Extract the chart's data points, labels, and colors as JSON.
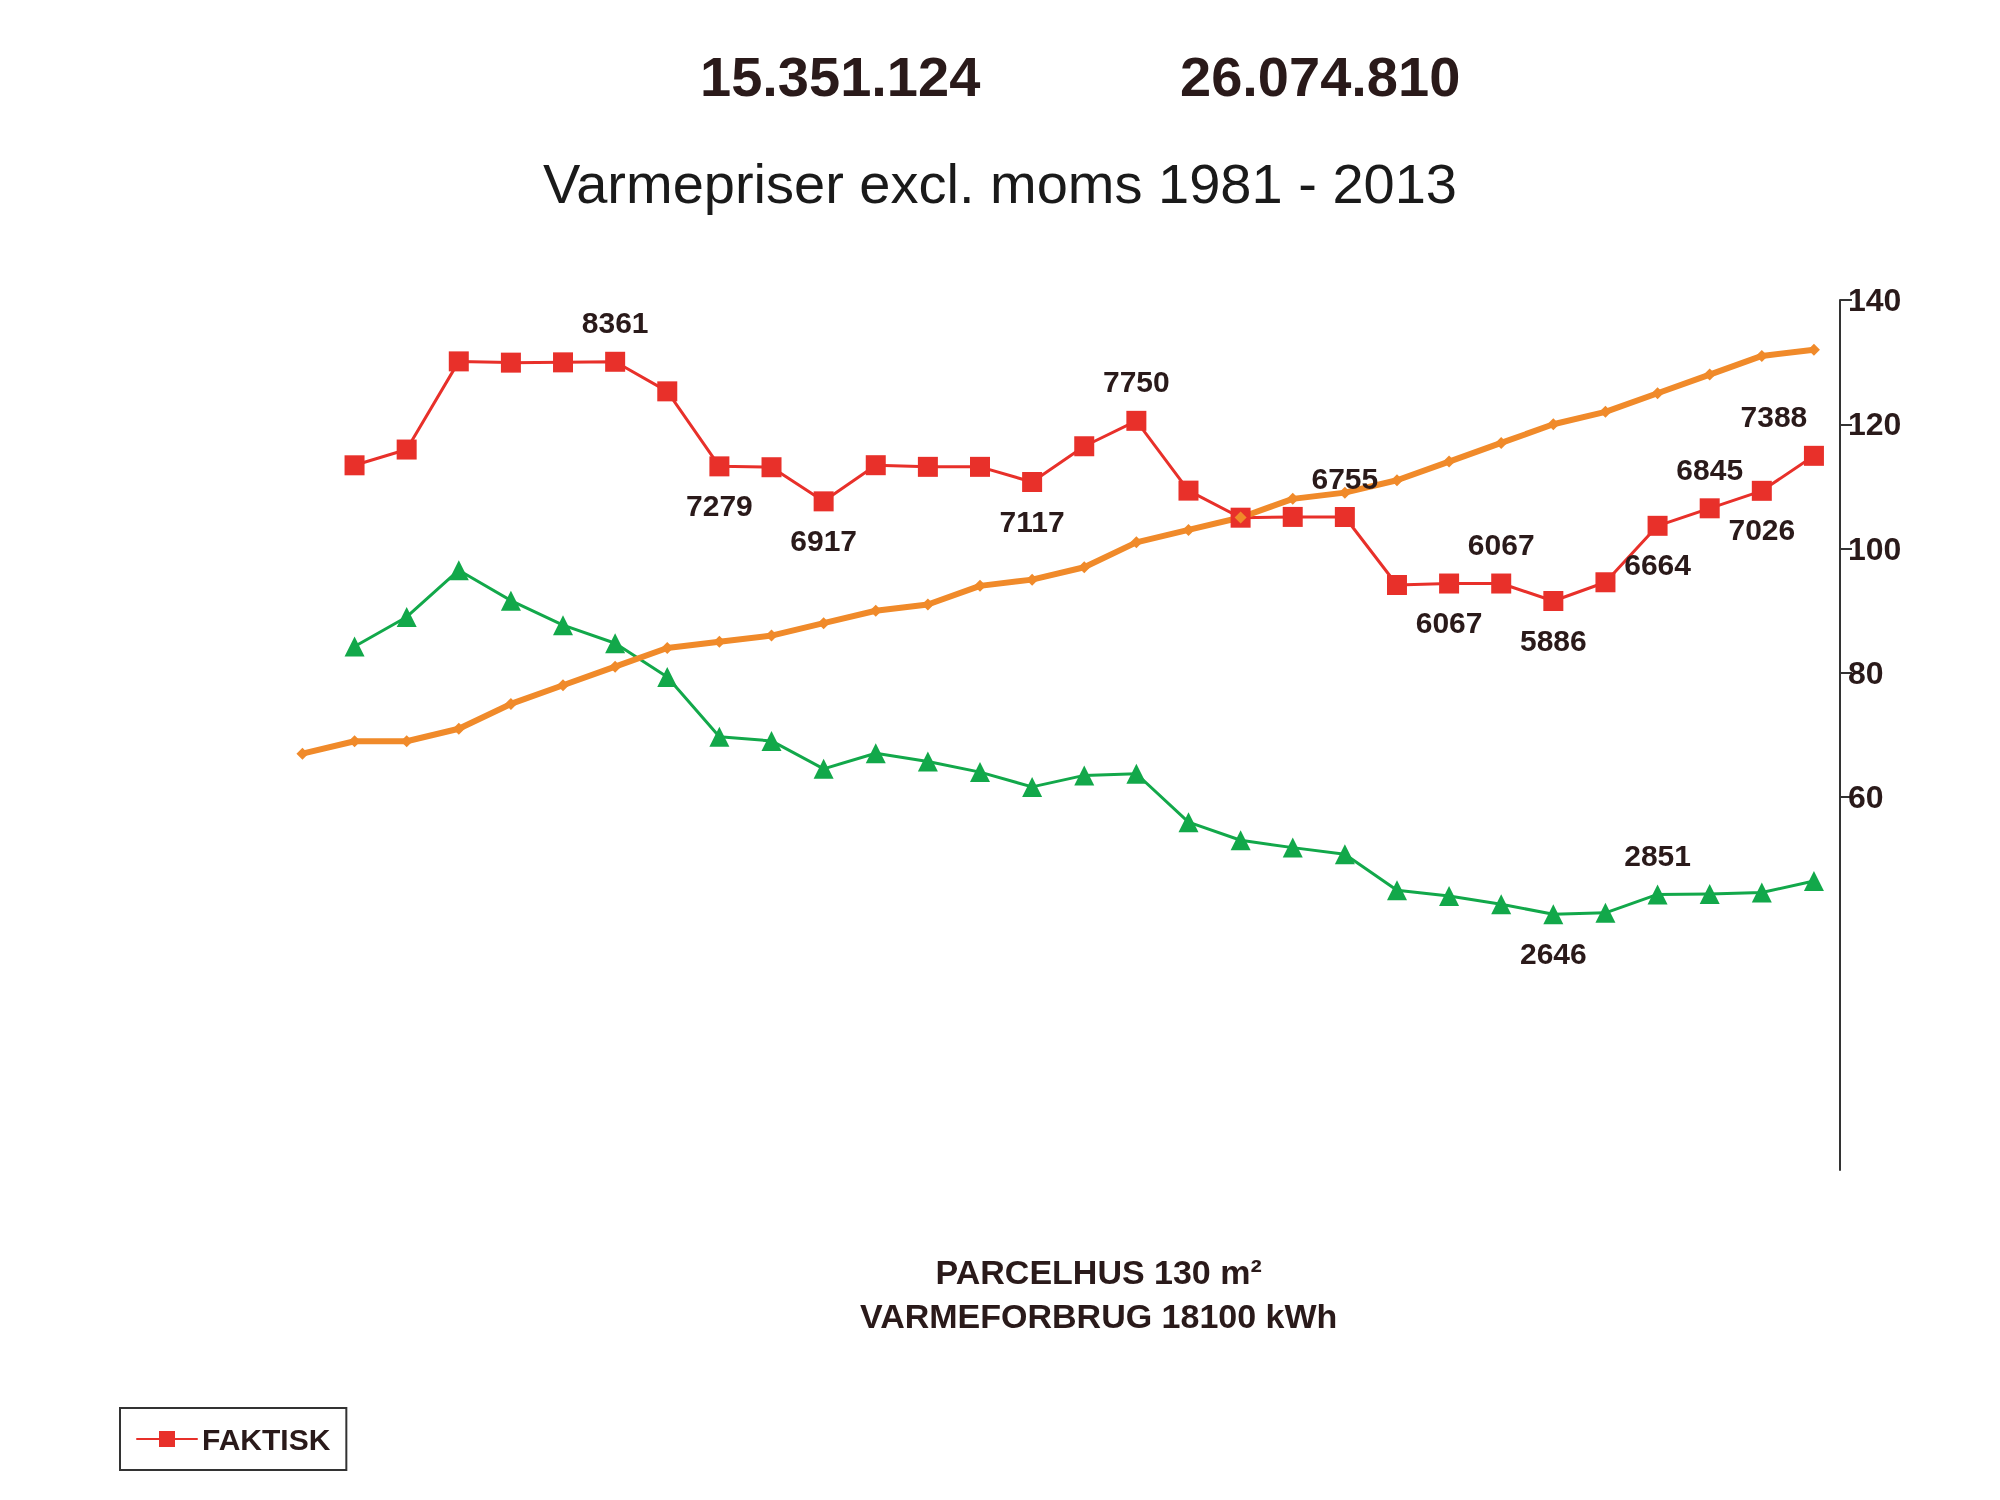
{
  "chart_data": {
    "type": "line",
    "title": "Varmepriser excl. moms 1981 - 2013",
    "categories": [
      null,
      null,
      null,
      null,
      null,
      null,
      null,
      null,
      null,
      null,
      null,
      null,
      null,
      null,
      null,
      null,
      null,
      null,
      null,
      null,
      null,
      null,
      null,
      null,
      null,
      null,
      null,
      null,
      null,
      null,
      null,
      null,
      null
    ],
    "series": [
      {
        "name": "FAKTISK",
        "color": "#e8302a",
        "marker": "square",
        "axis": "y2",
        "values": [
          null,
          null,
          null,
          null,
          7290,
          7453,
          8365,
          8352,
          8355,
          8361,
          8055,
          7279,
          7270,
          6917,
          7291,
          7274,
          7274,
          7117,
          7487,
          7750,
          7028,
          6748,
          6756,
          6755,
          6052,
          6067,
          6067,
          5886,
          6080,
          6664,
          6845,
          7026,
          7388
        ],
        "value_labels": [
          null,
          null,
          null,
          null,
          null,
          null,
          null,
          null,
          null,
          "8361",
          null,
          "7279",
          null,
          "6917",
          null,
          null,
          null,
          "7117",
          null,
          "7750",
          null,
          null,
          null,
          "6755",
          null,
          "6067",
          "6067",
          "5886",
          null,
          "6664",
          "6845",
          "7026",
          "7388"
        ]
      },
      {
        "color": "#12a84a",
        "marker": "triangle",
        "axis": "y2",
        "values": [
          null,
          null,
          null,
          null,
          5415,
          5721,
          6205,
          5890,
          5636,
          5449,
          5101,
          4481,
          4439,
          4150,
          4311,
          4226,
          4116,
          3963,
          4082,
          4099,
          3598,
          3411,
          3335,
          3267,
          2893,
          2834,
          2749,
          2646,
          2660,
          2851,
          2855,
          2870,
          2990
        ],
        "value_labels": [
          null,
          null,
          null,
          null,
          null,
          null,
          null,
          null,
          null,
          null,
          null,
          null,
          null,
          null,
          null,
          null,
          null,
          null,
          null,
          null,
          null,
          null,
          null,
          null,
          null,
          null,
          null,
          "2646",
          null,
          "2851",
          null,
          null,
          null
        ]
      },
      {
        "color": "#f08a2a",
        "marker": "diamond",
        "values": [
          null,
          null,
          null,
          67,
          69,
          69,
          71,
          75,
          78,
          81,
          84,
          85,
          86,
          88,
          90,
          91,
          94,
          95,
          97,
          101,
          103,
          105,
          108,
          109,
          111,
          114,
          117,
          120,
          122,
          125,
          128,
          131,
          132
        ]
      }
    ],
    "ylim": [
      0,
      140
    ],
    "yticks": [
      60,
      80,
      100,
      120,
      140
    ],
    "y2lim": [
      0,
      9000
    ],
    "tick_labels": "y",
    "grid": false,
    "legend": "bottom left",
    "annotations": [
      "PARCELHUS 130 m²\nVARMEFORBRUG 18100 kWh",
      "15.351.124",
      "26.074.810"
    ]
  }
}
